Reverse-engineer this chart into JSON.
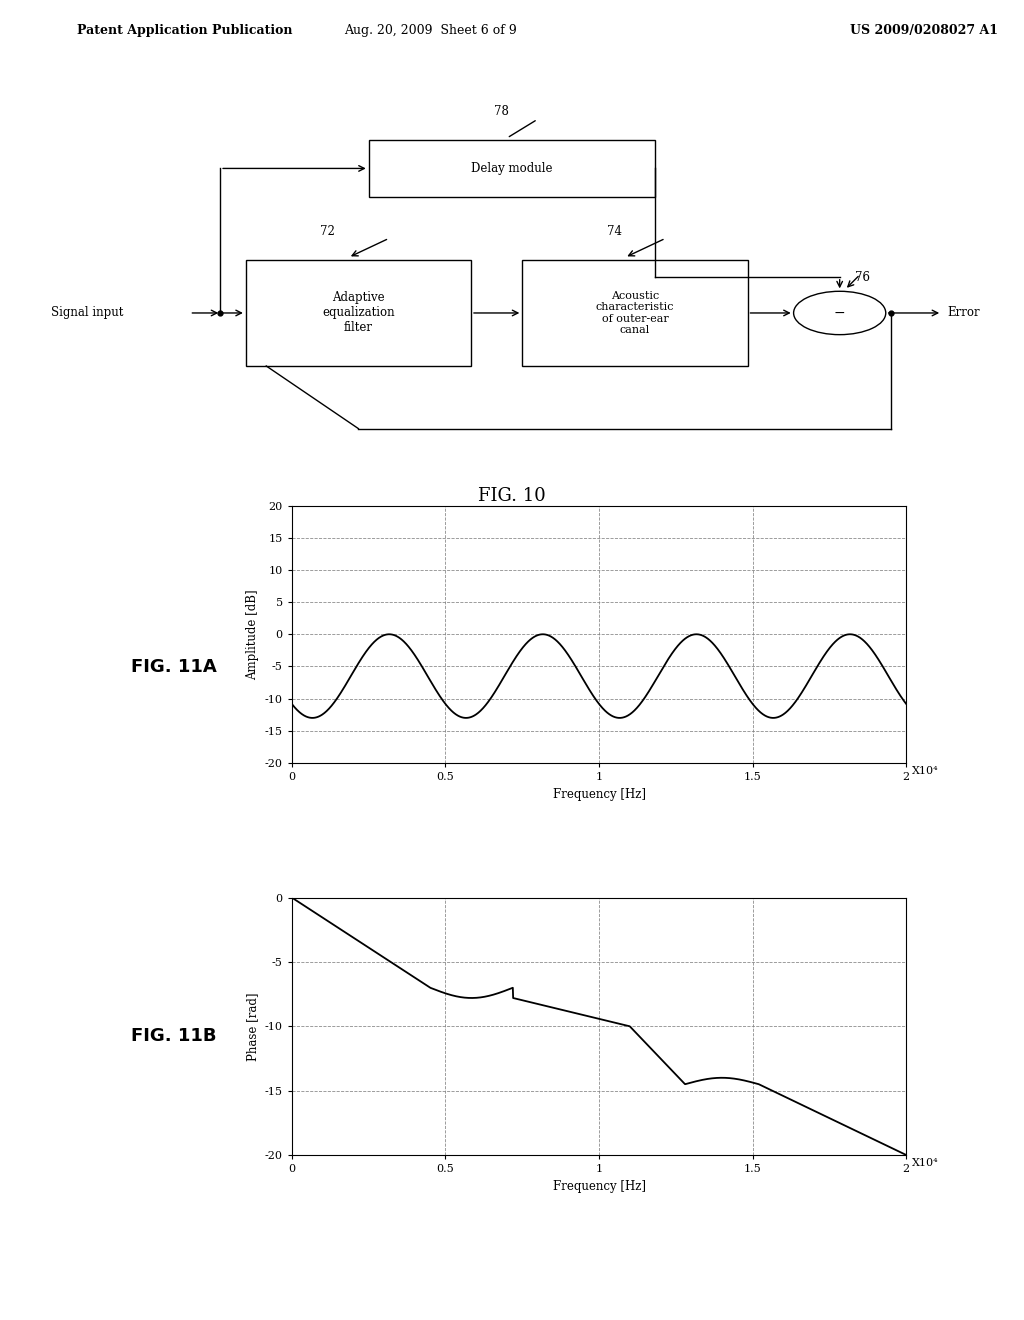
{
  "background_color": "#ffffff",
  "header_left": "Patent Application Publication",
  "header_mid": "Aug. 20, 2009  Sheet 6 of 9",
  "header_right": "US 2009/0208027 A1",
  "fig10_label": "FIG. 10",
  "fig11a_label": "FIG. 11A",
  "fig11b_label": "FIG. 11B",
  "block_delay": "Delay module",
  "block_delay_label": "78",
  "block_filter": "Adaptive\nequalization\nfilter",
  "block_filter_label": "72",
  "block_acoustic": "Acoustic\ncharacteristic\nof outer-ear\ncanal",
  "block_acoustic_label": "74",
  "circle_label": "76",
  "signal_input": "Signal input",
  "error_output": "Error",
  "plot11a_ylabel": "Amplitude [dB]",
  "plot11a_xlabel": "Frequency [Hz]",
  "plot11a_yticks": [
    -20,
    -15,
    -10,
    -5,
    0,
    5,
    10,
    15,
    20
  ],
  "plot11a_xticks": [
    0,
    0.5,
    1,
    1.5,
    2
  ],
  "plot11a_ylim": [
    -20,
    20
  ],
  "plot11a_xlim": [
    0,
    2
  ],
  "plot11b_ylabel": "Phase [rad]",
  "plot11b_xlabel": "Frequency [Hz]",
  "plot11b_yticks": [
    -20,
    -15,
    -10,
    -5,
    0
  ],
  "plot11b_xticks": [
    0,
    0.5,
    1,
    1.5,
    2
  ],
  "plot11b_ylim": [
    -20,
    0
  ],
  "plot11b_xlim": [
    0,
    2
  ],
  "xscale_label": "X10⁴"
}
